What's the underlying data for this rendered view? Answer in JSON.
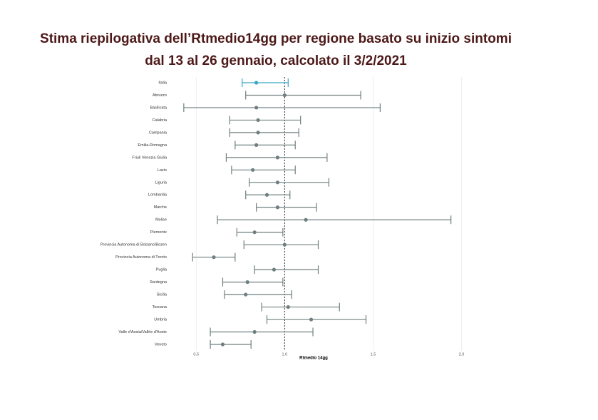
{
  "chart_data": {
    "type": "errorbar",
    "title": [
      "Stima riepilogativa dell’Rtmedio14gg per regione basato su inizio sintomi",
      "dal 13 al 26 gennaio, calcolato il 3/2/2021"
    ],
    "xlabel": "Rtmedio 14gg",
    "categories": [
      "Italia",
      "Abruzzo",
      "Basilicata",
      "Calabria",
      "Campania",
      "Emilia-Romagna",
      "Friuli Venezia Giulia",
      "Lazio",
      "Liguria",
      "Lombardia",
      "Marche",
      "Molise",
      "Piemonte",
      "Provincia Autonoma di Bolzano/Bozen",
      "Provincia Autonoma di Trento",
      "Puglia",
      "Sardegna",
      "Sicilia",
      "Toscana",
      "Umbria",
      "Valle d'Aosta/Vallée d'Aoste",
      "Veneto"
    ],
    "values": [
      0.84,
      1.0,
      0.84,
      0.85,
      0.85,
      0.84,
      0.96,
      0.82,
      0.96,
      0.9,
      0.96,
      1.12,
      0.83,
      1.0,
      0.6,
      0.94,
      0.79,
      0.78,
      1.02,
      1.15,
      0.83,
      0.65
    ],
    "lower": [
      0.76,
      0.78,
      0.43,
      0.69,
      0.69,
      0.72,
      0.67,
      0.7,
      0.8,
      0.78,
      0.84,
      0.62,
      0.73,
      0.77,
      0.48,
      0.83,
      0.65,
      0.66,
      0.87,
      0.9,
      0.58,
      0.58
    ],
    "upper": [
      1.02,
      1.43,
      1.54,
      1.09,
      1.08,
      1.06,
      1.24,
      1.06,
      1.25,
      1.03,
      1.18,
      1.94,
      0.99,
      1.19,
      0.72,
      1.19,
      0.99,
      1.04,
      1.31,
      1.46,
      1.16,
      0.81
    ],
    "colors": [
      "#3aa6c4",
      "#6f7f7f",
      "#6f7f7f",
      "#6f7f7f",
      "#6f7f7f",
      "#6f7f7f",
      "#6f7f7f",
      "#6f7f7f",
      "#6f7f7f",
      "#6f7f7f",
      "#6f7f7f",
      "#6f7f7f",
      "#6f7f7f",
      "#6f7f7f",
      "#6f7f7f",
      "#6f7f7f",
      "#6f7f7f",
      "#6f7f7f",
      "#6f7f7f",
      "#6f7f7f",
      "#6f7f7f",
      "#6f7f7f"
    ],
    "xlim": [
      0.35,
      2.03
    ],
    "xticks": [
      0.5,
      {
        "value": 1,
        "label": "1.0"
      },
      1.5,
      {
        "value": 2,
        "label": "2.0"
      }
    ],
    "reference_line": 1,
    "grid": true
  }
}
